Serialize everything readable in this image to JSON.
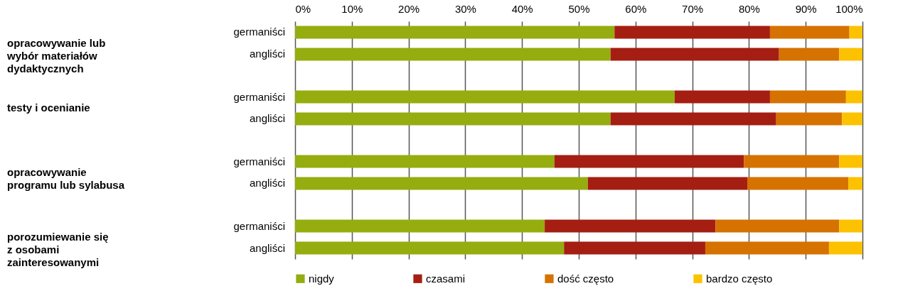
{
  "chart_data": {
    "type": "bar",
    "orientation": "horizontal",
    "stacked": true,
    "categories": [
      "germaniści",
      "angliści",
      "germaniści",
      "angliści",
      "germaniści",
      "angliści",
      "germaniści",
      "angliści"
    ],
    "annotations": [
      "opracowywanie lub\nwybór materiałów\ndydaktycznych",
      "testy i ocenianie",
      "opracowywanie\nprogramu lub sylabusa",
      "porozumiewanie się\nz osobami\nzainteresowanymi"
    ],
    "series": [
      {
        "name": "nigdy",
        "color": "#95ad0f",
        "values": [
          56.3,
          55.6,
          66.9,
          55.6,
          45.7,
          51.6,
          44.0,
          47.4
        ]
      },
      {
        "name": "czasami",
        "color": "#a51e12",
        "values": [
          27.4,
          29.7,
          16.8,
          29.2,
          33.4,
          28.1,
          30.1,
          24.9
        ]
      },
      {
        "name": "dość często",
        "color": "#d57200",
        "values": [
          14.0,
          10.6,
          13.4,
          11.6,
          16.8,
          17.8,
          21.8,
          21.8
        ]
      },
      {
        "name": "bardzo często",
        "color": "#fcc200",
        "values": [
          2.3,
          4.1,
          2.9,
          3.6,
          4.1,
          2.5,
          4.1,
          5.9
        ]
      }
    ],
    "xlim": [
      0,
      100
    ],
    "xticks": [
      {
        "value": 0,
        "label": "0%"
      },
      {
        "value": 10,
        "label": "10%"
      },
      {
        "value": 20,
        "label": "20%"
      },
      {
        "value": 30,
        "label": "30%"
      },
      {
        "value": 40,
        "label": "40%"
      },
      {
        "value": 50,
        "label": "50%"
      },
      {
        "value": 60,
        "label": "60%"
      },
      {
        "value": 70,
        "label": "70%"
      },
      {
        "value": 80,
        "label": "80%"
      },
      {
        "value": 90,
        "label": "90%"
      },
      {
        "value": 100,
        "label": "100%"
      }
    ],
    "grid": "x",
    "legend": "bottom"
  }
}
